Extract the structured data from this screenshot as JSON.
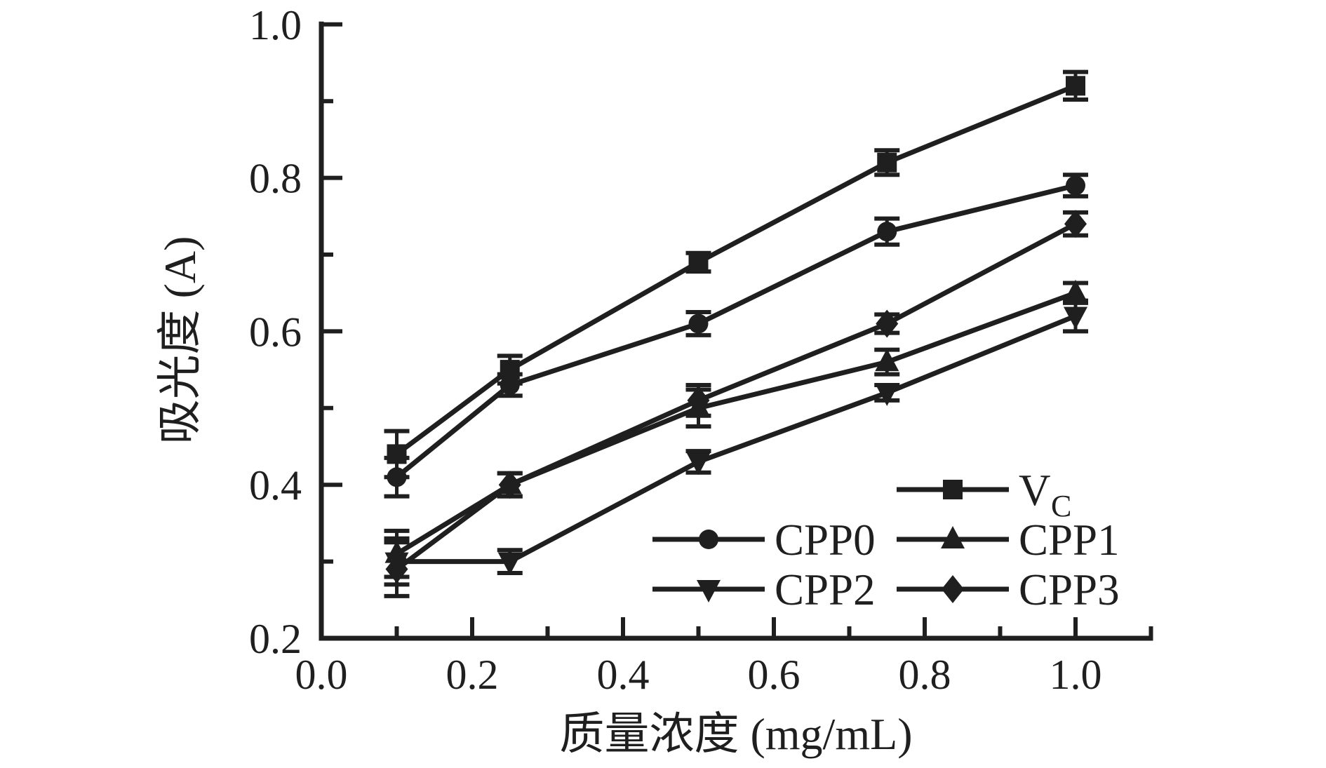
{
  "figure": {
    "background": "#ffffff",
    "ink": "#1f1f1f"
  },
  "chart_data": {
    "type": "line",
    "title": "",
    "xlabel": "质量浓度 (mg/mL)",
    "ylabel": "吸光度 (A)",
    "grid": false,
    "legend_position": "inside-lower-right",
    "xlim": [
      0.0,
      1.1
    ],
    "ylim": [
      0.2,
      1.0
    ],
    "x": [
      0.1,
      0.25,
      0.5,
      0.75,
      1.0
    ],
    "x_axis": {
      "major_ticks": [
        0.0,
        0.2,
        0.4,
        0.6,
        0.8,
        1.0
      ],
      "major_labels": [
        "0.0",
        "0.2",
        "0.4",
        "0.6",
        "0.8",
        "1.0"
      ],
      "minor_ticks": [
        0.1,
        0.3,
        0.5,
        0.7,
        0.9,
        1.1
      ]
    },
    "y_axis": {
      "major_ticks": [
        0.2,
        0.4,
        0.6,
        0.8,
        1.0
      ],
      "major_labels": [
        "0.2",
        "0.4",
        "0.6",
        "0.8",
        "1.0"
      ],
      "minor_ticks": [
        0.3,
        0.5,
        0.7,
        0.9
      ]
    },
    "series": [
      {
        "name": "VC",
        "display": "V",
        "display_sub": "C",
        "marker": "square",
        "values": [
          0.44,
          0.55,
          0.69,
          0.82,
          0.92
        ],
        "errors": [
          0.03,
          0.018,
          0.012,
          0.016,
          0.018
        ]
      },
      {
        "name": "CPP0",
        "display": "CPP0",
        "display_sub": "",
        "marker": "circle",
        "values": [
          0.41,
          0.53,
          0.61,
          0.73,
          0.79
        ],
        "errors": [
          0.025,
          0.014,
          0.015,
          0.017,
          0.014
        ]
      },
      {
        "name": "CPP1",
        "display": "CPP1",
        "display_sub": "",
        "marker": "triangle-up",
        "values": [
          0.31,
          0.4,
          0.5,
          0.56,
          0.65
        ],
        "errors": [
          0.03,
          0.015,
          0.024,
          0.016,
          0.013
        ]
      },
      {
        "name": "CPP2",
        "display": "CPP2",
        "display_sub": "",
        "marker": "triangle-down",
        "values": [
          0.3,
          0.3,
          0.43,
          0.52,
          0.62
        ],
        "errors": [
          0.03,
          0.015,
          0.014,
          0.01,
          0.02
        ]
      },
      {
        "name": "CPP3",
        "display": "CPP3",
        "display_sub": "",
        "marker": "diamond",
        "values": [
          0.29,
          0.4,
          0.51,
          0.61,
          0.74
        ],
        "errors": [
          0.035,
          0.015,
          0.02,
          0.012,
          0.015
        ]
      }
    ],
    "legend": {
      "rows": [
        [
          null,
          "VC"
        ],
        [
          "CPP0",
          "CPP1"
        ],
        [
          "CPP2",
          "CPP3"
        ]
      ]
    }
  }
}
